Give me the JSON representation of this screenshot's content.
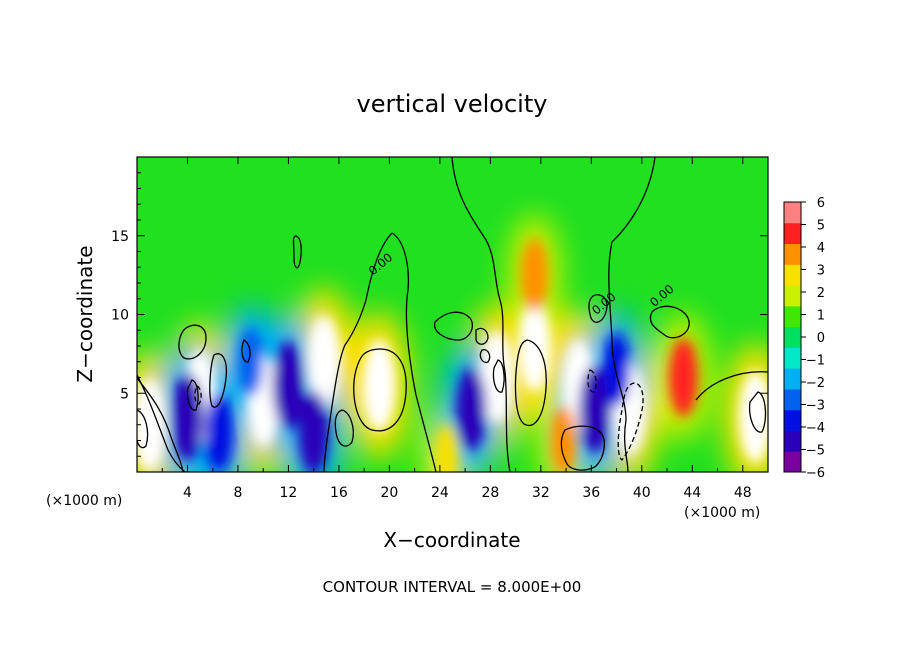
{
  "chart_data": {
    "type": "heatmap",
    "title": "vertical velocity",
    "xlabel": "X−coordinate",
    "ylabel": "Z−coordinate",
    "x_unit_left": "(×1000 m)",
    "x_unit_right": "(×1000 m)",
    "footer": "CONTOUR INTERVAL = 8.000E+00",
    "xlim": [
      0,
      50
    ],
    "ylim": [
      0,
      20
    ],
    "x_ticks": [
      4,
      8,
      12,
      16,
      20,
      24,
      28,
      32,
      36,
      40,
      44,
      48
    ],
    "y_ticks": [
      5,
      10,
      15
    ],
    "colorbar": {
      "min": -6,
      "max": 6,
      "tick_values": [
        6,
        5,
        4,
        3,
        2,
        1,
        0,
        -1,
        -2,
        -3,
        -4,
        -5,
        -6
      ],
      "tick_labels": [
        "6",
        "5",
        "4",
        "3",
        "2",
        "1",
        "0",
        "−1",
        "−2",
        "−3",
        "−4",
        "−5",
        "−6"
      ],
      "colors": [
        "#7a00a0",
        "#2a00b8",
        "#0010e0",
        "#0060f0",
        "#00b0f0",
        "#00e8c8",
        "#00e060",
        "#40e800",
        "#c8f000",
        "#f8e000",
        "#ff9000",
        "#ff2020",
        "#ff8080"
      ],
      "saturated_high": "#ffffff"
    },
    "contour_labels": [
      {
        "text": "0.00",
        "x": 19.5,
        "y": 13.0
      },
      {
        "text": "0.00",
        "x": 37.2,
        "y": 10.5
      },
      {
        "text": "0.00",
        "x": 41.8,
        "y": 11.0
      }
    ],
    "features": [
      {
        "x": 1.0,
        "z": 3.0,
        "value": 6.5
      },
      {
        "x": 5.0,
        "z": 4.8,
        "value": 7.0
      },
      {
        "x": 10.0,
        "z": 4.5,
        "value": 6.8
      },
      {
        "x": 14.8,
        "z": 7.0,
        "value": 6.8
      },
      {
        "x": 19.2,
        "z": 5.5,
        "value": 8.5
      },
      {
        "x": 28.5,
        "z": 6.0,
        "value": 6.8
      },
      {
        "x": 31.5,
        "z": 8.0,
        "value": 9.0
      },
      {
        "x": 35.0,
        "z": 5.5,
        "value": 6.8
      },
      {
        "x": 39.0,
        "z": 4.0,
        "value": 7.0
      },
      {
        "x": 43.3,
        "z": 6.0,
        "value": 4.5
      },
      {
        "x": 49.0,
        "z": 3.5,
        "value": 7.0
      },
      {
        "x": 4.0,
        "z": 3.5,
        "value": -5.5
      },
      {
        "x": 6.5,
        "z": 2.5,
        "value": -4.5
      },
      {
        "x": 9.0,
        "z": 7.0,
        "value": -3.5
      },
      {
        "x": 12.0,
        "z": 5.5,
        "value": -5.5
      },
      {
        "x": 14.0,
        "z": 2.5,
        "value": -5.0
      },
      {
        "x": 24.5,
        "z": 1.0,
        "value": 3.0
      },
      {
        "x": 26.5,
        "z": 4.0,
        "value": -5.0
      },
      {
        "x": 33.8,
        "z": 2.0,
        "value": 3.5
      },
      {
        "x": 36.3,
        "z": 4.0,
        "value": -5.5
      },
      {
        "x": 38.0,
        "z": 6.5,
        "value": -4.0
      },
      {
        "x": 31.5,
        "z": 12.5,
        "value": 4.0
      }
    ]
  }
}
